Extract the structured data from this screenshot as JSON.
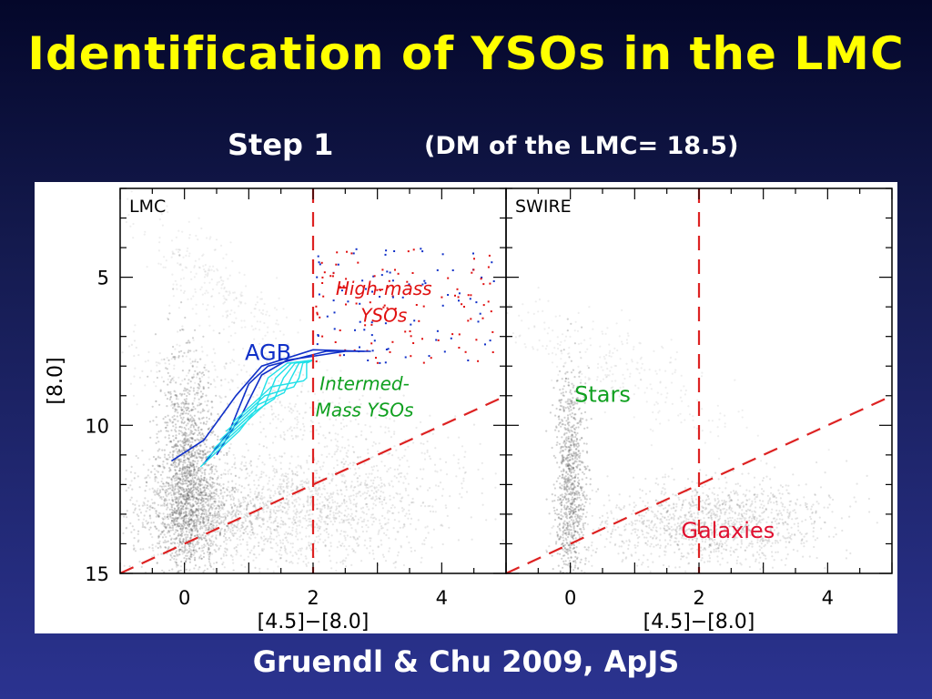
{
  "slide": {
    "title": "Identification of YSOs in the LMC",
    "step": "Step 1",
    "dm_note": "(DM of the LMC= 18.5)",
    "credit": "Gruendl & Chu 2009, ApJS"
  },
  "colors": {
    "title": "#ffff00",
    "cut_line": "#dd2222",
    "agb": "#1030c8",
    "high_mass": "#e01010",
    "intermed": "#10a020",
    "galaxies": "#e01030",
    "intermed_tracks": "#20e0e8"
  },
  "chart_data": [
    {
      "type": "scatter",
      "panel_label": "LMC",
      "xlabel": "[4.5]−[8.0]",
      "ylabel": "[8.0]",
      "xlim": [
        -1.0,
        5.0
      ],
      "ylim": [
        15.0,
        2.0
      ],
      "xticks": [
        0,
        2,
        4
      ],
      "yticks": [
        5,
        10,
        15
      ],
      "y_inverted": true,
      "cuts": {
        "vertical_x": 2.0,
        "diagonal": [
          [
            -1.0,
            15.0
          ],
          [
            5.0,
            9.0
          ]
        ]
      },
      "annotations": [
        {
          "text": "AGB",
          "x": 1.3,
          "y": 7.8,
          "color": "#1030c8"
        },
        {
          "text": "High-mass",
          "x": 3.1,
          "y": 5.6,
          "color": "#e01010"
        },
        {
          "text": "YSOs",
          "x": 3.1,
          "y": 6.5,
          "color": "#e01010"
        },
        {
          "text": "Intermed-",
          "x": 2.8,
          "y": 8.8,
          "color": "#10a020"
        },
        {
          "text": "Mass YSOs",
          "x": 2.8,
          "y": 9.7,
          "color": "#10a020"
        }
      ],
      "density_regions": [
        {
          "name": "stellar sequence",
          "x": 0.05,
          "y": 11.5
        },
        {
          "name": "galaxy cloud",
          "x": 1.8,
          "y": 13.2
        }
      ]
    },
    {
      "type": "scatter",
      "panel_label": "SWIRE",
      "xlabel": "[4.5]−[8.0]",
      "ylabel": "",
      "xlim": [
        -1.0,
        5.0
      ],
      "ylim": [
        15.0,
        2.0
      ],
      "xticks": [
        0,
        2,
        4
      ],
      "yticks": [
        5,
        10,
        15
      ],
      "y_inverted": true,
      "cuts": {
        "vertical_x": 2.0,
        "diagonal": [
          [
            -1.0,
            15.0
          ],
          [
            5.0,
            9.0
          ]
        ]
      },
      "annotations": [
        {
          "text": "Stars",
          "x": 0.5,
          "y": 9.2,
          "color": "#10a020"
        },
        {
          "text": "Galaxies",
          "x": 2.45,
          "y": 13.8,
          "color": "#e01030"
        }
      ],
      "density_regions": [
        {
          "name": "stellar sequence",
          "x": 0.0,
          "y": 11.5
        },
        {
          "name": "galaxy cloud",
          "x": 2.2,
          "y": 13.4
        }
      ]
    }
  ]
}
